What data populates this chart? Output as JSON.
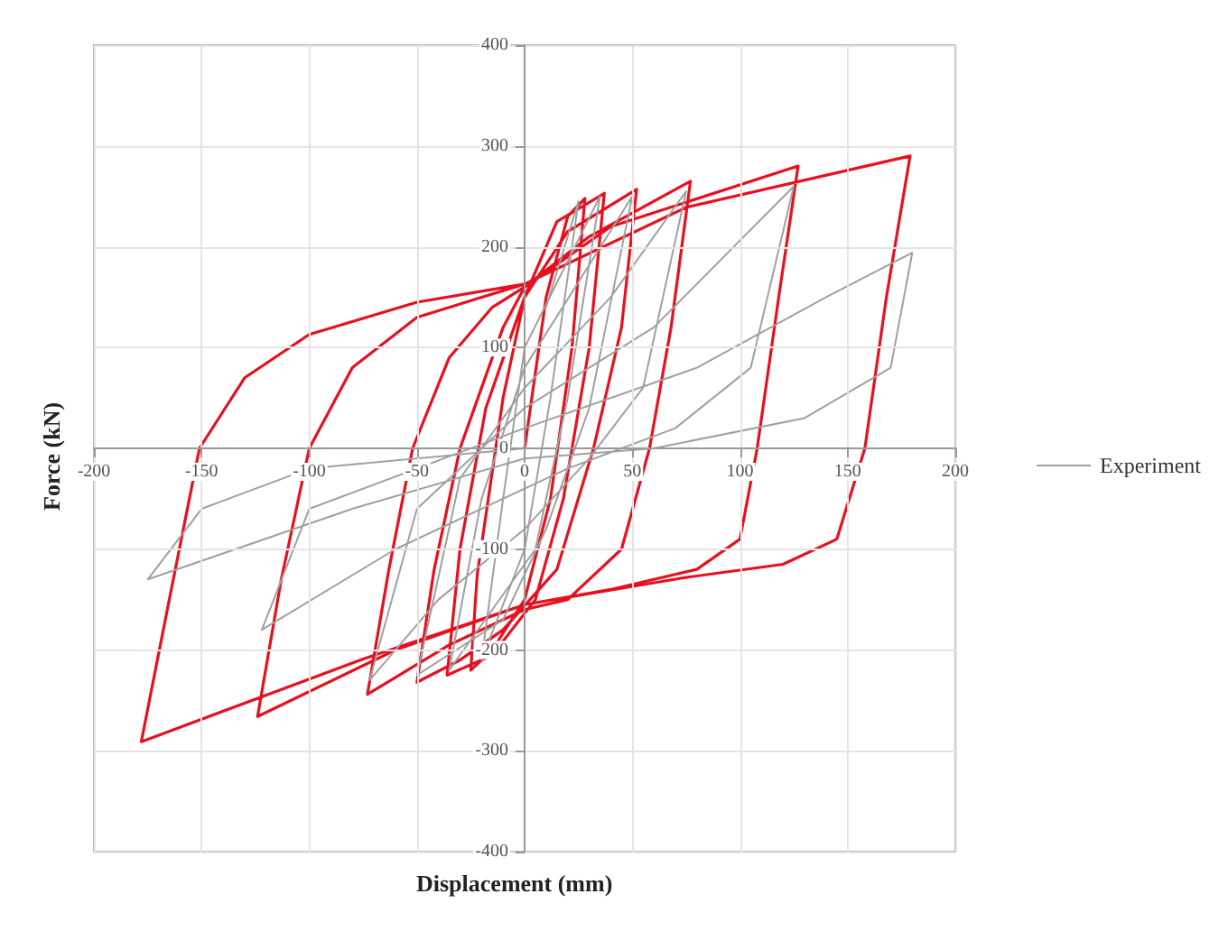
{
  "chart_data": {
    "type": "line",
    "xlabel": "Displacement (mm)",
    "ylabel": "Force (kN)",
    "xlim": [
      -200,
      200
    ],
    "xticks": [
      -200,
      -150,
      -100,
      -50,
      0,
      50,
      100,
      150,
      200
    ],
    "ylim": [
      -400,
      400
    ],
    "yticks": [
      -400,
      -300,
      -200,
      -100,
      0,
      100,
      200,
      300,
      400
    ],
    "grid": true,
    "legend": "right",
    "marker": "none",
    "line_style": "solid",
    "series": [
      {
        "name": "Experiment",
        "color": "#a0a0a0",
        "x": [
          10,
          25,
          12,
          0,
          -20,
          -10,
          0,
          35,
          20,
          5,
          -35,
          -20,
          0,
          50,
          30,
          10,
          -10,
          -50,
          -30,
          0,
          40,
          75,
          55,
          30,
          0,
          -40,
          -72,
          -50,
          -20,
          0,
          60,
          125,
          105,
          70,
          20,
          0,
          -60,
          -122,
          -100,
          -50,
          0,
          80,
          140,
          180,
          170,
          130,
          60,
          0,
          -80,
          -175,
          -150,
          -100,
          0
        ],
        "values": [
          140,
          245,
          50,
          -100,
          -210,
          -50,
          100,
          250,
          50,
          -100,
          -220,
          -50,
          80,
          250,
          40,
          -80,
          -170,
          -225,
          -30,
          60,
          150,
          255,
          60,
          -10,
          -80,
          -150,
          -230,
          -60,
          0,
          40,
          120,
          260,
          80,
          20,
          -20,
          -40,
          -100,
          -180,
          -60,
          -20,
          20,
          80,
          150,
          194,
          80,
          30,
          0,
          -10,
          -60,
          -130,
          -60,
          -20,
          0
        ]
      },
      {
        "color": "#e8101e",
        "x": [
          0,
          10,
          20,
          28,
          22,
          12,
          0,
          -15,
          -25,
          -22,
          -10,
          0,
          15,
          37,
          30,
          18,
          5,
          -15,
          -36,
          -30,
          -18,
          0,
          20,
          52,
          45,
          32,
          15,
          -10,
          -30,
          -50,
          -42,
          -30,
          -10,
          0,
          30,
          77,
          68,
          58,
          45,
          20,
          0,
          -35,
          -73,
          -63,
          -52,
          -35,
          -15,
          0,
          40,
          127,
          118,
          108,
          100,
          80,
          40,
          0,
          -60,
          -124,
          -113,
          -100,
          -80,
          -50,
          0,
          75,
          179,
          168,
          158,
          145,
          120,
          75,
          0,
          -75,
          -178,
          -165,
          -151,
          -130,
          -100,
          -50,
          0
        ],
        "values": [
          0,
          150,
          230,
          248,
          100,
          -50,
          -150,
          -200,
          -220,
          -125,
          50,
          150,
          225,
          253,
          100,
          -50,
          -150,
          -205,
          -225,
          -100,
          40,
          150,
          215,
          257,
          120,
          0,
          -120,
          -180,
          -210,
          -232,
          -120,
          0,
          120,
          160,
          210,
          265,
          120,
          0,
          -100,
          -150,
          -160,
          -195,
          -244,
          -120,
          0,
          90,
          140,
          160,
          220,
          280,
          150,
          0,
          -90,
          -120,
          -140,
          -155,
          -200,
          -266,
          -130,
          0,
          80,
          130,
          163,
          239,
          290,
          150,
          0,
          -90,
          -115,
          -128,
          -155,
          -209,
          -291,
          -150,
          0,
          70,
          113,
          145,
          163
        ]
      }
    ]
  }
}
